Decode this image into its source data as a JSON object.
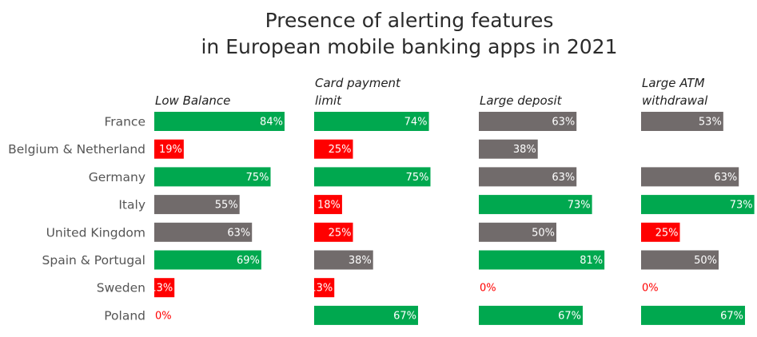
{
  "chart_data": {
    "type": "bar",
    "title_lines": [
      "Presence of alerting features",
      "in European mobile banking apps in 2021"
    ],
    "categories": [
      "France",
      "Belgium & Netherland",
      "Germany",
      "Italy",
      "United Kingdom",
      "Spain & Portugal",
      "Sweden",
      "Poland"
    ],
    "unit_suffix": "%",
    "xlim": [
      0,
      100
    ],
    "grid": false,
    "colors": {
      "green": "#00a84f",
      "red": "#ff0000",
      "gray": "#716b6b"
    },
    "series": [
      {
        "name_lines": [
          "Low Balance"
        ],
        "values": [
          84,
          19,
          75,
          55,
          63,
          69,
          13,
          0
        ],
        "colors": [
          "green",
          "red",
          "green",
          "gray",
          "gray",
          "green",
          "red",
          "red"
        ]
      },
      {
        "name_lines": [
          "Card payment",
          "limit"
        ],
        "values": [
          74,
          25,
          75,
          18,
          25,
          38,
          13,
          67
        ],
        "colors": [
          "green",
          "red",
          "green",
          "red",
          "red",
          "gray",
          "red",
          "green"
        ]
      },
      {
        "name_lines": [
          "Large deposit"
        ],
        "values": [
          63,
          38,
          63,
          73,
          50,
          81,
          0,
          67
        ],
        "colors": [
          "gray",
          "gray",
          "gray",
          "green",
          "gray",
          "green",
          "red",
          "green"
        ]
      },
      {
        "name_lines": [
          "Large ATM",
          "withdrawal"
        ],
        "values": [
          53,
          0,
          63,
          73,
          25,
          50,
          0,
          67
        ],
        "colors": [
          "gray",
          "none",
          "gray",
          "green",
          "red",
          "gray",
          "red",
          "green"
        ]
      }
    ]
  }
}
